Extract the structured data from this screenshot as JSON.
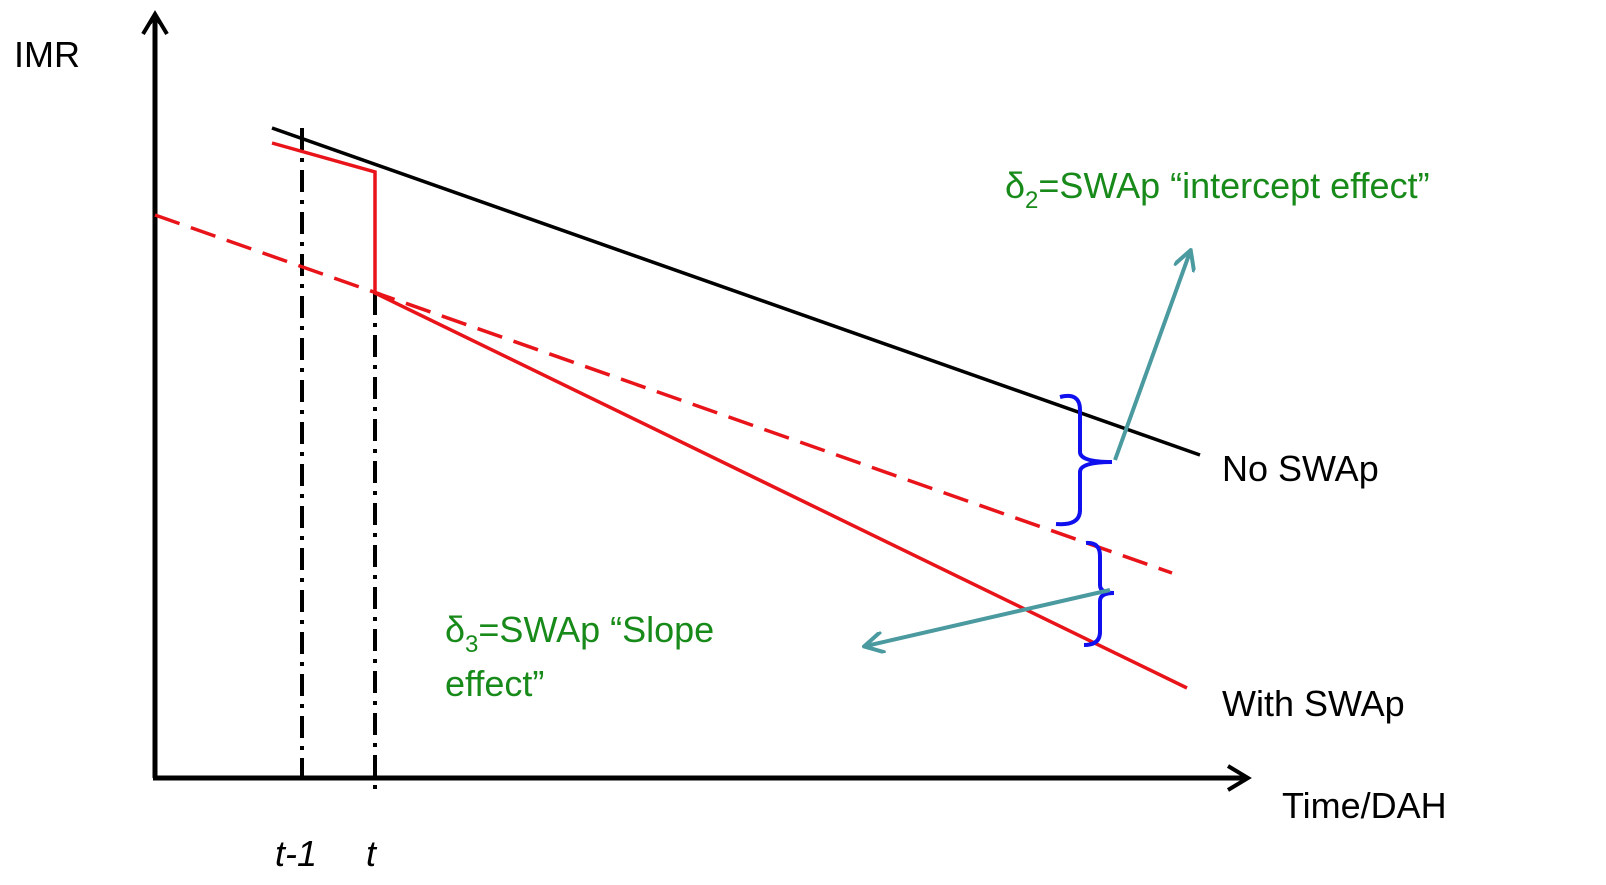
{
  "axes": {
    "y_label": "IMR",
    "x_label": "Time/DAH"
  },
  "time_marks": [
    "t-1",
    "t"
  ],
  "lines": [
    "No SWAp",
    "With SWAp"
  ],
  "annotations": [
    {
      "symbol": "δ",
      "subscript": "2",
      "text": "=SWAp “intercept effect”"
    },
    {
      "symbol": "δ",
      "subscript": "3",
      "lines": [
        "=SWAp “Slope",
        "effect”"
      ]
    }
  ]
}
